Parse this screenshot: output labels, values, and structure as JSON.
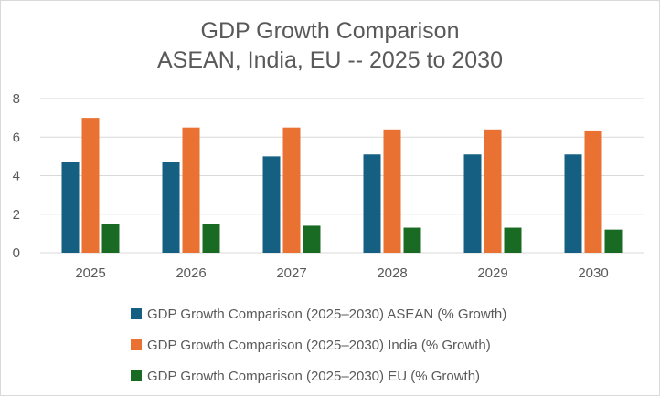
{
  "chart_data": {
    "type": "bar",
    "title": [
      "GDP Growth Comparison",
      "ASEAN, India, EU -- 2025 to 2030"
    ],
    "categories": [
      "2025",
      "2026",
      "2027",
      "2028",
      "2029",
      "2030"
    ],
    "series": [
      {
        "name": "GDP Growth Comparison (2025–2030) ASEAN (% Growth)",
        "color": "#156082",
        "values": [
          4.7,
          4.7,
          5.0,
          5.1,
          5.1,
          5.1
        ]
      },
      {
        "name": "GDP Growth Comparison (2025–2030) India (% Growth)",
        "color": "#E97132",
        "values": [
          7.0,
          6.5,
          6.5,
          6.4,
          6.4,
          6.3
        ]
      },
      {
        "name": "GDP Growth Comparison (2025–2030) EU (% Growth)",
        "color": "#196B24",
        "values": [
          1.5,
          1.5,
          1.4,
          1.3,
          1.3,
          1.2
        ]
      }
    ],
    "xlabel": "",
    "ylabel": "",
    "ylim": [
      0,
      8
    ],
    "yticks": [
      "0",
      "2",
      "4",
      "6",
      "8"
    ],
    "grid": true,
    "legend_position": "bottom"
  }
}
